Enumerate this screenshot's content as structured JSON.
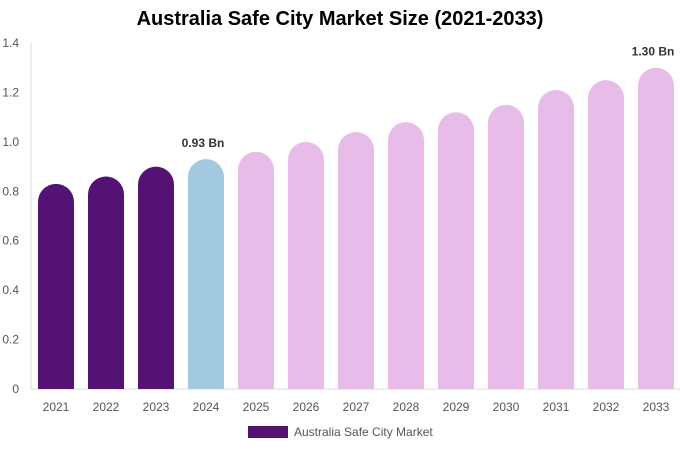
{
  "chart_data": {
    "type": "bar",
    "title": "Australia Safe City Market Size (2021-2033)",
    "categories": [
      "2021",
      "2022",
      "2023",
      "2024",
      "2025",
      "2026",
      "2027",
      "2028",
      "2029",
      "2030",
      "2031",
      "2032",
      "2033"
    ],
    "values": [
      0.83,
      0.86,
      0.9,
      0.93,
      0.96,
      1.0,
      1.04,
      1.08,
      1.12,
      1.15,
      1.21,
      1.25,
      1.3
    ],
    "bar_colors": [
      "#531274",
      "#531274",
      "#531274",
      "#a2c9de",
      "#e8bce8",
      "#e8bce8",
      "#e8bce8",
      "#e8bce8",
      "#e8bce8",
      "#e8bce8",
      "#e8bce8",
      "#e8bce8",
      "#e8bce8"
    ],
    "data_labels": [
      {
        "category": "2024",
        "text": "0.93 Bn"
      },
      {
        "category": "2033",
        "text": "1.30 Bn"
      }
    ],
    "yticks": [
      "0",
      "0.2",
      "0.4",
      "0.6",
      "0.8",
      "1.0",
      "1.2",
      "1.4"
    ],
    "ylim": [
      0,
      1.4
    ],
    "xlabel": "",
    "ylabel": "",
    "grid": false,
    "legend": {
      "placement": "bottom",
      "entries": [
        {
          "label": "Australia Safe City Market",
          "color": "#531274"
        }
      ]
    }
  }
}
